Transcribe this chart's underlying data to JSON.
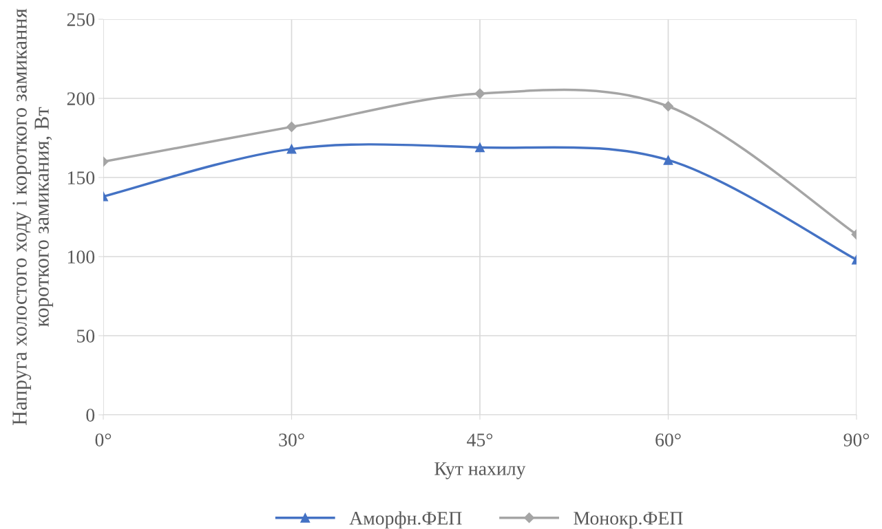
{
  "chart_data": {
    "type": "line",
    "xlabel": "Кут нахилу",
    "ylabel": "Напруга холостого ходу і короткого замикання короткого замикания, Вт",
    "categories": [
      "0°",
      "30°",
      "45°",
      "60°",
      "90°"
    ],
    "series": [
      {
        "name": "Аморфн.ФЕП",
        "color": "#4472c4",
        "marker": "triangle",
        "values": [
          138,
          168,
          169,
          161,
          98
        ]
      },
      {
        "name": "Монокр.ФЕП",
        "color": "#a5a5a5",
        "marker": "diamond",
        "values": [
          160,
          182,
          203,
          195,
          114
        ]
      }
    ],
    "ylim": [
      0,
      250
    ],
    "yticks": [
      0,
      50,
      100,
      150,
      200,
      250
    ],
    "grid": true,
    "legend": "bottom",
    "line_style": "solid"
  }
}
